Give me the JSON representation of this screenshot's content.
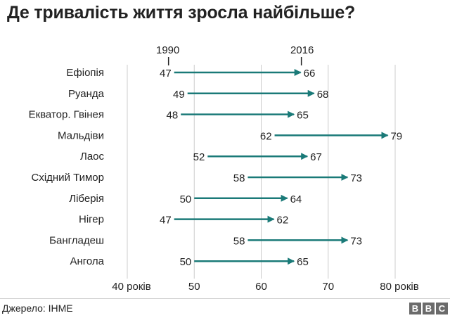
{
  "title": "Де тривалість життя зросла найбільше?",
  "source": "Джерело:  IHME",
  "logo": [
    "B",
    "B",
    "C"
  ],
  "colors": {
    "arrow": "#1a7a78",
    "grid": "#cccccc",
    "text": "#222222"
  },
  "chart_data": {
    "type": "dumbbell-arrow",
    "start_label": "1990",
    "end_label": "2016",
    "series": [
      {
        "name": "1990",
        "values": [
          47,
          49,
          48,
          62,
          52,
          58,
          50,
          47,
          58,
          50
        ]
      },
      {
        "name": "2016",
        "values": [
          66,
          68,
          65,
          79,
          67,
          73,
          64,
          62,
          73,
          65
        ]
      }
    ],
    "categories": [
      "Ефіопія",
      "Руанда",
      "Екватор. Гвінея",
      "Мальдіви",
      "Лаос",
      "Східний Тимор",
      "Ліберія",
      "Нігер",
      "Бангладеш",
      "Ангола"
    ],
    "x_ticks": [
      40,
      50,
      60,
      70,
      80
    ],
    "x_tick_labels": [
      "40 років",
      "50",
      "60",
      "70",
      "80 років"
    ],
    "xlim": [
      38,
      87
    ],
    "grid": "vertical"
  }
}
